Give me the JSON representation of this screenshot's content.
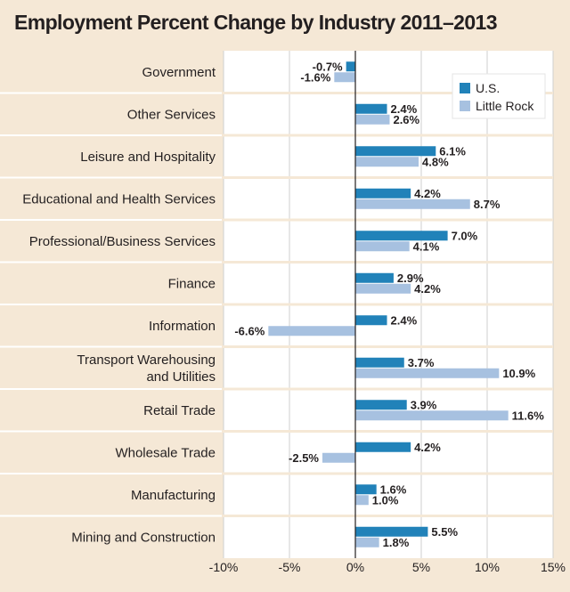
{
  "chart_data": {
    "type": "bar",
    "orientation": "horizontal",
    "title": "Employment Percent Change by Industry 2011–2013",
    "xlabel": "",
    "ylabel": "",
    "xlim": [
      -10,
      15
    ],
    "xticks": [
      -10,
      -5,
      0,
      5,
      10,
      15
    ],
    "xtick_labels": [
      "-10%",
      "-5%",
      "0%",
      "5%",
      "10%",
      "15%"
    ],
    "grid": true,
    "legend_position": "top-right",
    "categories": [
      "Government",
      "Other Services",
      "Leisure and Hospitality",
      "Educational and Health Services",
      "Professional/Business Services",
      "Finance",
      "Information",
      "Transport Warehousing and Utilities",
      "Retail Trade",
      "Wholesale Trade",
      "Manufacturing",
      "Mining and Construction"
    ],
    "category_lines": [
      [
        "Government"
      ],
      [
        "Other Services"
      ],
      [
        "Leisure and Hospitality"
      ],
      [
        "Educational and Health Services"
      ],
      [
        "Professional/Business Services"
      ],
      [
        "Finance"
      ],
      [
        "Information"
      ],
      [
        "Transport Warehousing",
        "and Utilities"
      ],
      [
        "Retail Trade"
      ],
      [
        "Wholesale Trade"
      ],
      [
        "Manufacturing"
      ],
      [
        "Mining and Construction"
      ]
    ],
    "series": [
      {
        "name": "U.S.",
        "color": "#2182b9",
        "values": [
          -0.7,
          2.4,
          6.1,
          4.2,
          7.0,
          2.9,
          2.4,
          3.7,
          3.9,
          4.2,
          1.6,
          5.5
        ],
        "labels": [
          "-0.7%",
          "2.4%",
          "6.1%",
          "4.2%",
          "7.0%",
          "2.9%",
          "2.4%",
          "3.7%",
          "3.9%",
          "4.2%",
          "1.6%",
          "5.5%"
        ]
      },
      {
        "name": "Little Rock",
        "color": "#a7c1e0",
        "values": [
          -1.6,
          2.6,
          4.8,
          8.7,
          4.1,
          4.2,
          -6.6,
          10.9,
          11.6,
          -2.5,
          1.0,
          1.8
        ],
        "labels": [
          "-1.6%",
          "2.6%",
          "4.8%",
          "8.7%",
          "4.1%",
          "4.2%",
          "-6.6%",
          "10.9%",
          "11.6%",
          "-2.5%",
          "1.0%",
          "1.8%"
        ]
      }
    ]
  }
}
